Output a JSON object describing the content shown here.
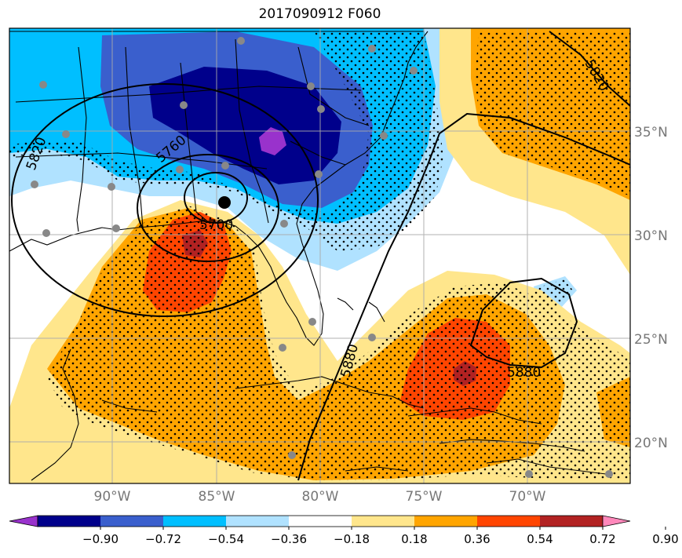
{
  "title": "2017090912 F060",
  "lat_labels": [
    "35°N",
    "30°N",
    "25°N",
    "20°N"
  ],
  "lon_labels": [
    "90°W",
    "85°W",
    "80°W",
    "75°W",
    "70°W"
  ],
  "contour_labels": [
    "5820",
    "5760",
    "5700",
    "5880",
    "5880",
    "5820"
  ],
  "colorbar": {
    "colors": [
      "#9932cc",
      "#00008b",
      "#3a5fcd",
      "#00bfff",
      "#b0e2ff",
      "#ffffff",
      "#ffe68c",
      "#ffa500",
      "#ff4500",
      "#b22222",
      "#ff88bb"
    ],
    "ticks": [
      "−0.90",
      "−0.72",
      "−0.54",
      "−0.36",
      "−0.18",
      "0.18",
      "0.36",
      "0.54",
      "0.72",
      "0.90"
    ]
  },
  "colors": {
    "pos_dark": "#b22222",
    "pos_red": "#ff4500",
    "pos_orange": "#ffa500",
    "pos_yellow": "#ffe68c",
    "neg_light": "#b0e2ff",
    "neg_cyan": "#00bfff",
    "neg_blue": "#3a5fcd",
    "neg_navy": "#00008b",
    "neg_purple": "#9932cc"
  },
  "storm_marker": "black-dot"
}
